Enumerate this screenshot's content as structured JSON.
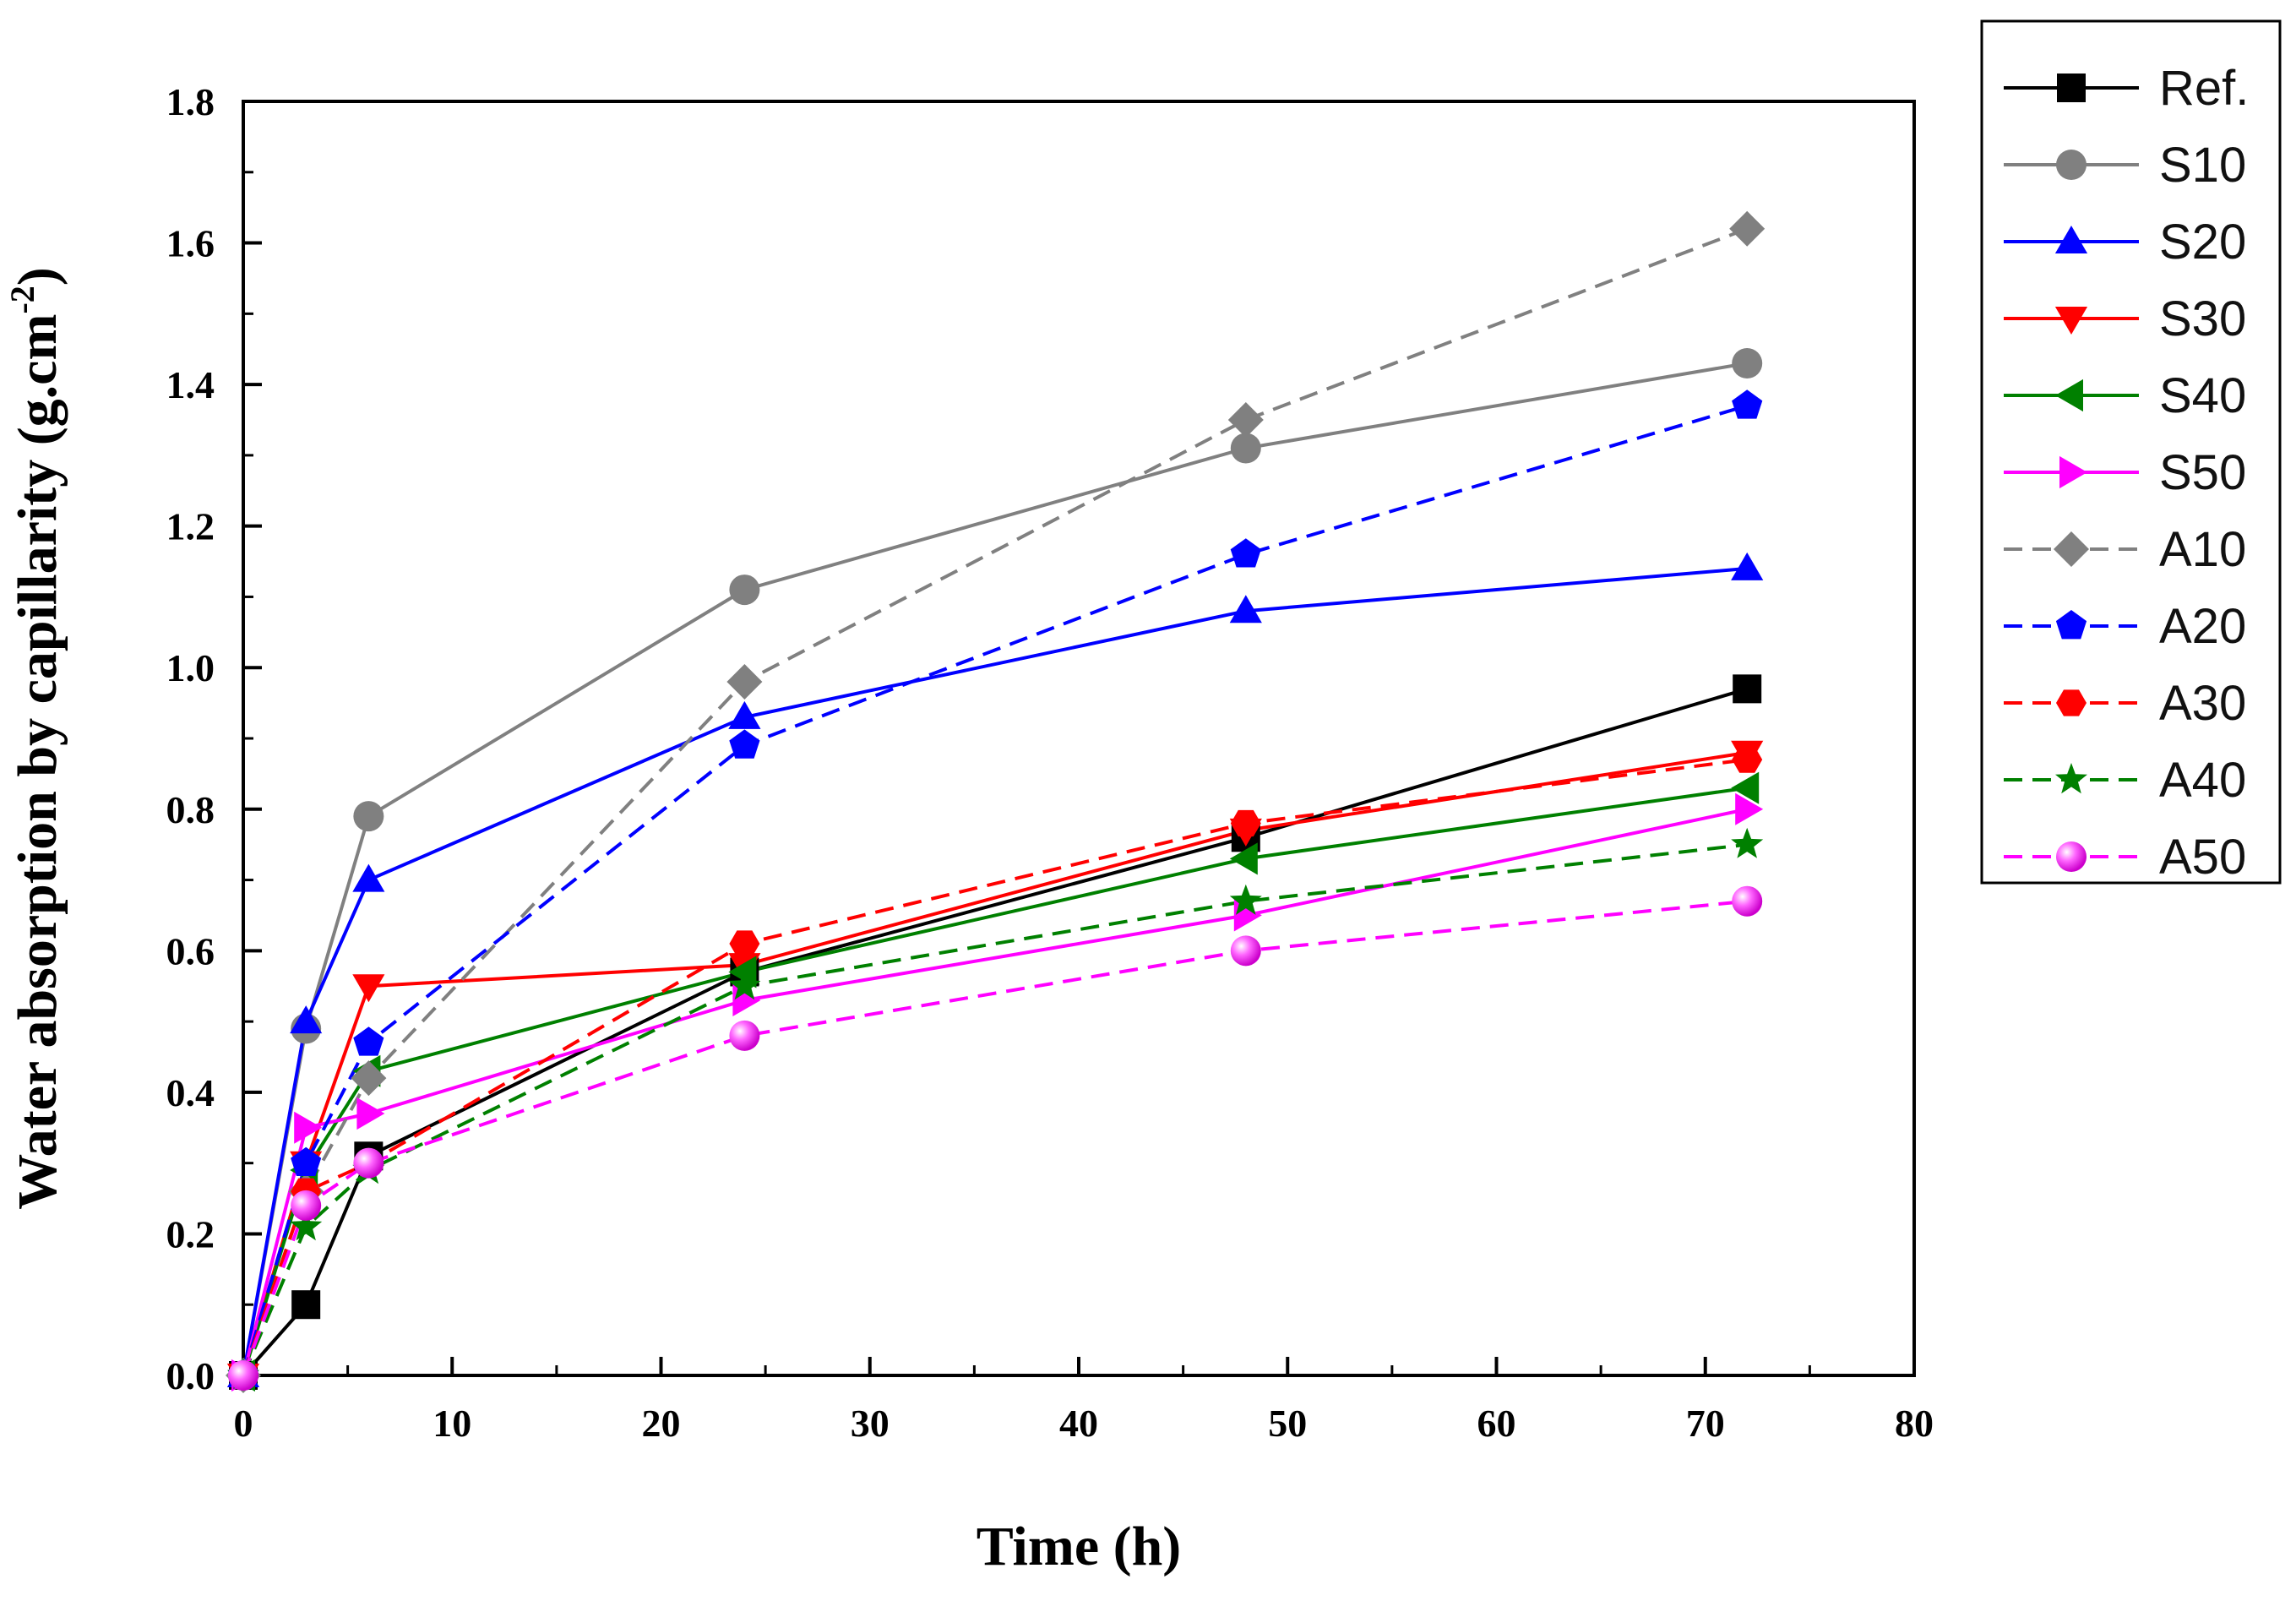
{
  "chart_data": {
    "type": "line",
    "xlabel": "Time (h)",
    "ylabel": "Water absorption by capillarity (g.cm",
    "ylabel_superscript": "-2",
    "ylabel_close": ")",
    "xlim": [
      0,
      80
    ],
    "ylim": [
      0.0,
      1.8
    ],
    "xticks": [
      "0",
      "10",
      "20",
      "30",
      "40",
      "50",
      "60",
      "70",
      "80"
    ],
    "yticks": [
      "0.0",
      "0.2",
      "0.4",
      "0.6",
      "0.8",
      "1.0",
      "1.2",
      "1.4",
      "1.6",
      "1.8"
    ],
    "xtick_values": [
      0,
      10,
      20,
      30,
      40,
      50,
      60,
      70,
      80
    ],
    "ytick_values": [
      0.0,
      0.2,
      0.4,
      0.6,
      0.8,
      1.0,
      1.2,
      1.4,
      1.6,
      1.8
    ],
    "grid": false,
    "legend_position": "outside-right",
    "x": [
      0,
      3,
      6,
      24,
      48,
      72
    ],
    "series": [
      {
        "name": "Ref.",
        "values": [
          0.0,
          0.1,
          0.31,
          0.57,
          0.76,
          0.97
        ],
        "color": "#000000",
        "dash": "solid",
        "marker": "square"
      },
      {
        "name": "S10",
        "values": [
          0.0,
          0.49,
          0.79,
          1.11,
          1.31,
          1.43
        ],
        "color": "#808080",
        "dash": "solid",
        "marker": "circle"
      },
      {
        "name": "S20",
        "values": [
          0.0,
          0.5,
          0.7,
          0.93,
          1.08,
          1.14
        ],
        "color": "#0000ff",
        "dash": "solid",
        "marker": "triangle-up"
      },
      {
        "name": "S30",
        "values": [
          0.0,
          0.3,
          0.55,
          0.58,
          0.77,
          0.88
        ],
        "color": "#ff0000",
        "dash": "solid",
        "marker": "triangle-down"
      },
      {
        "name": "S40",
        "values": [
          0.0,
          0.29,
          0.43,
          0.57,
          0.73,
          0.83
        ],
        "color": "#008000",
        "dash": "solid",
        "marker": "triangle-left"
      },
      {
        "name": "S50",
        "values": [
          0.0,
          0.35,
          0.37,
          0.53,
          0.65,
          0.8
        ],
        "color": "#ff00ff",
        "dash": "solid",
        "marker": "triangle-right"
      },
      {
        "name": "A10",
        "values": [
          0.0,
          0.26,
          0.42,
          0.98,
          1.35,
          1.62
        ],
        "color": "#808080",
        "dash": "dashed",
        "marker": "diamond"
      },
      {
        "name": "A20",
        "values": [
          0.0,
          0.3,
          0.47,
          0.89,
          1.16,
          1.37
        ],
        "color": "#0000ff",
        "dash": "dashed",
        "marker": "pentagon"
      },
      {
        "name": "A30",
        "values": [
          0.0,
          0.26,
          0.3,
          0.61,
          0.78,
          0.87
        ],
        "color": "#ff0000",
        "dash": "dashed",
        "marker": "hexagon"
      },
      {
        "name": "A40",
        "values": [
          0.0,
          0.21,
          0.29,
          0.55,
          0.67,
          0.75
        ],
        "color": "#008000",
        "dash": "dashed",
        "marker": "star"
      },
      {
        "name": "A50",
        "values": [
          0.0,
          0.24,
          0.3,
          0.48,
          0.6,
          0.67
        ],
        "color": "#ff00ff",
        "dash": "dashed",
        "marker": "sphere"
      }
    ]
  }
}
